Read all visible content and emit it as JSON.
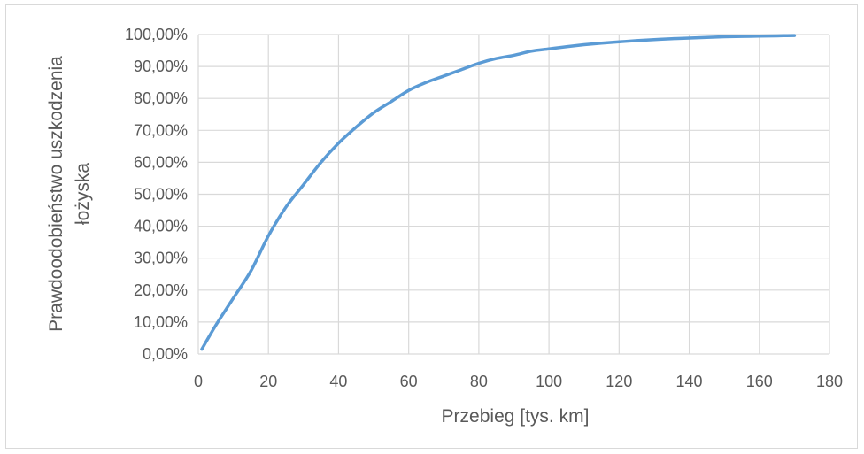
{
  "chart_data": {
    "type": "line",
    "title": "",
    "xlabel": "Przebieg [tys. km]",
    "ylabel_lines": [
      "Prawdoodobieństwo uszkodzenia",
      "łożyska"
    ],
    "xlim": [
      0,
      180
    ],
    "ylim": [
      0,
      1
    ],
    "x_ticks": [
      0,
      20,
      40,
      60,
      80,
      100,
      120,
      140,
      160,
      180
    ],
    "x_tick_labels": [
      "0",
      "20",
      "40",
      "60",
      "80",
      "100",
      "120",
      "140",
      "160",
      "180"
    ],
    "y_ticks": [
      0,
      0.1,
      0.2,
      0.3,
      0.4,
      0.5,
      0.6,
      0.7,
      0.8,
      0.9,
      1.0
    ],
    "y_tick_labels": [
      "0,00%",
      "10,00%",
      "20,00%",
      "30,00%",
      "40,00%",
      "50,00%",
      "60,00%",
      "70,00%",
      "80,00%",
      "90,00%",
      "100,00%"
    ],
    "grid": true,
    "legend": "none",
    "series_color": "#5b9bd5",
    "grid_color": "#d9d9d9",
    "series": [
      {
        "x": [
          1,
          5,
          10,
          15,
          20,
          25,
          30,
          35,
          40,
          45,
          50,
          55,
          60,
          65,
          70,
          75,
          80,
          85,
          90,
          95,
          100,
          105,
          110,
          115,
          120,
          125,
          130,
          135,
          140,
          145,
          150,
          155,
          160,
          165,
          170
        ],
        "y": [
          0.015,
          0.09,
          0.175,
          0.26,
          0.37,
          0.46,
          0.53,
          0.6,
          0.66,
          0.71,
          0.755,
          0.79,
          0.825,
          0.85,
          0.87,
          0.89,
          0.91,
          0.925,
          0.935,
          0.948,
          0.955,
          0.962,
          0.968,
          0.973,
          0.977,
          0.981,
          0.984,
          0.987,
          0.989,
          0.991,
          0.993,
          0.994,
          0.995,
          0.996,
          0.997
        ]
      }
    ]
  }
}
